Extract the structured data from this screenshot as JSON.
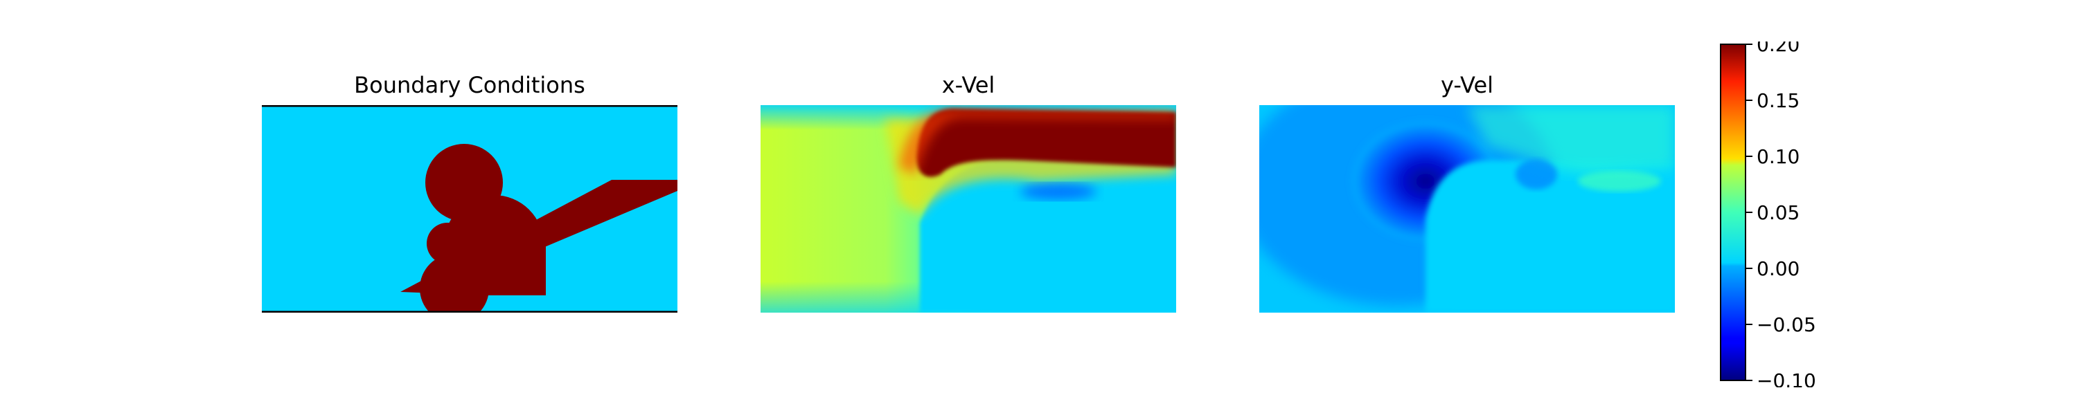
{
  "chart_data": [
    {
      "type": "heatmap",
      "title": "Boundary Conditions",
      "xlabel": "",
      "ylabel": "",
      "colormap": "jet",
      "vmin": -0.1,
      "vmax": 0.2,
      "content": "Binary mask: free flow (0.00) vs solid obstacles (0.20); solid top and bottom walls"
    },
    {
      "type": "heatmap",
      "title": "x-Vel",
      "xlabel": "",
      "ylabel": "",
      "colormap": "jet",
      "vmin": -0.1,
      "vmax": 0.2,
      "content": "Horizontal velocity field: strong jet (~0.20) over obstacle near top, ~0.08 on the left, ~0.00 downstream"
    },
    {
      "type": "heatmap",
      "title": "y-Vel",
      "xlabel": "",
      "ylabel": "",
      "colormap": "jet",
      "vmin": -0.1,
      "vmax": 0.2,
      "content": "Vertical velocity field: strong negative region (~-0.10) left of obstacle, weak positive (~0.03) upper right"
    }
  ],
  "colorbar": {
    "ticks": [
      "0.20",
      "0.15",
      "0.10",
      "0.05",
      "0.00",
      "−0.05",
      "−0.10"
    ],
    "values": [
      0.2,
      0.15,
      0.1,
      0.05,
      0.0,
      -0.05,
      -0.1
    ]
  },
  "colors": {
    "free": "#00d4ff",
    "solid": "#800000",
    "wall": "#000000"
  }
}
